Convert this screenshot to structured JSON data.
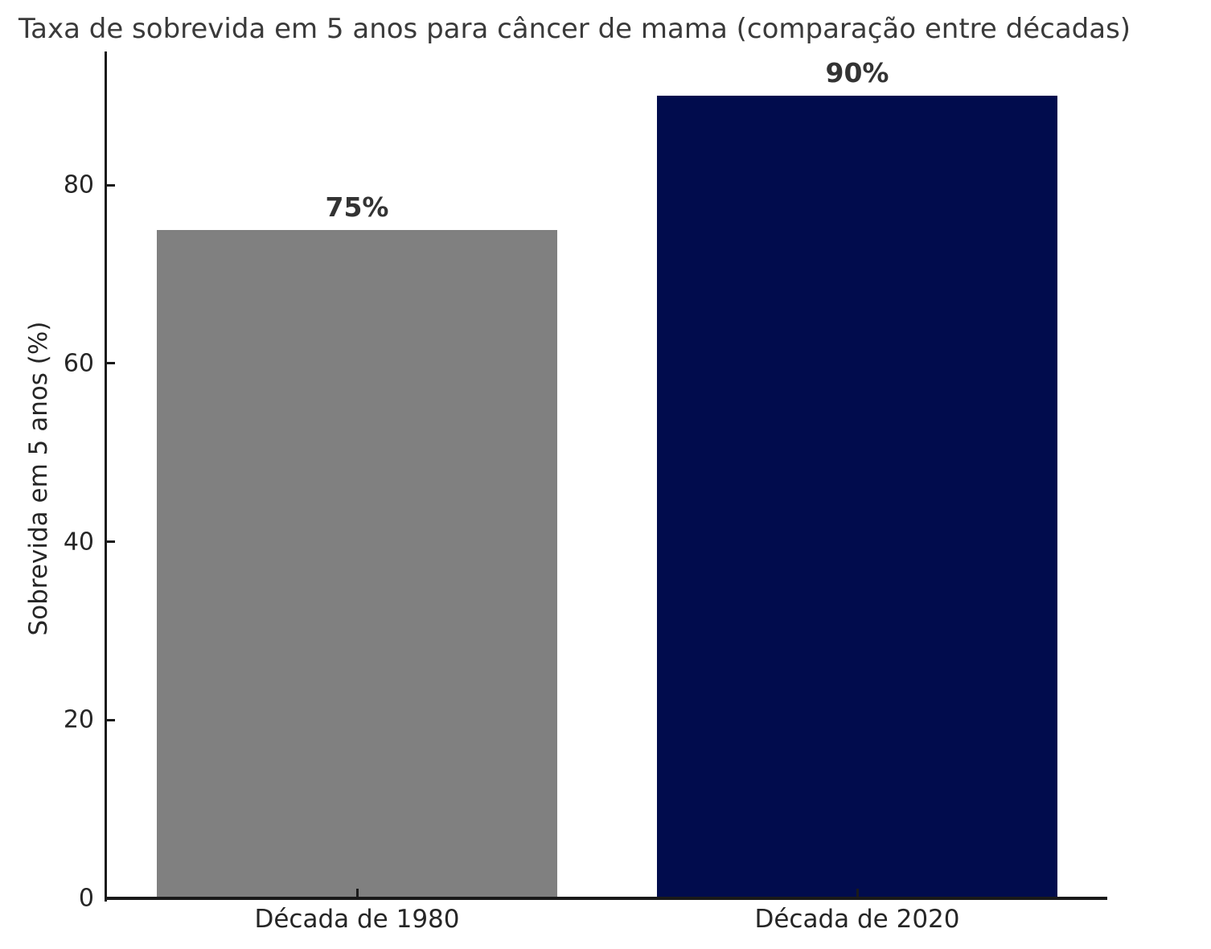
{
  "chart_data": {
    "type": "bar",
    "title": "Taxa de sobrevida em 5 anos para câncer de mama (comparação entre décadas)",
    "xlabel": "",
    "ylabel": "Sobrevida em 5 anos (%)",
    "categories": [
      "Década de 1980",
      "Década de 2020"
    ],
    "values": [
      75,
      90
    ],
    "value_labels": [
      "75%",
      "90%"
    ],
    "bar_colors": [
      "#808080",
      "#010c4d"
    ],
    "ylim": [
      0,
      95
    ],
    "yticks": [
      0,
      20,
      40,
      60,
      80
    ],
    "bar_width_fraction": 0.8,
    "grid": false,
    "legend": null
  },
  "colors": {
    "background": "#ffffff",
    "title_text": "#3a3a3a",
    "axis_text": "#262626",
    "spine": "#1a1a1a",
    "value_label_text": "#333333"
  }
}
